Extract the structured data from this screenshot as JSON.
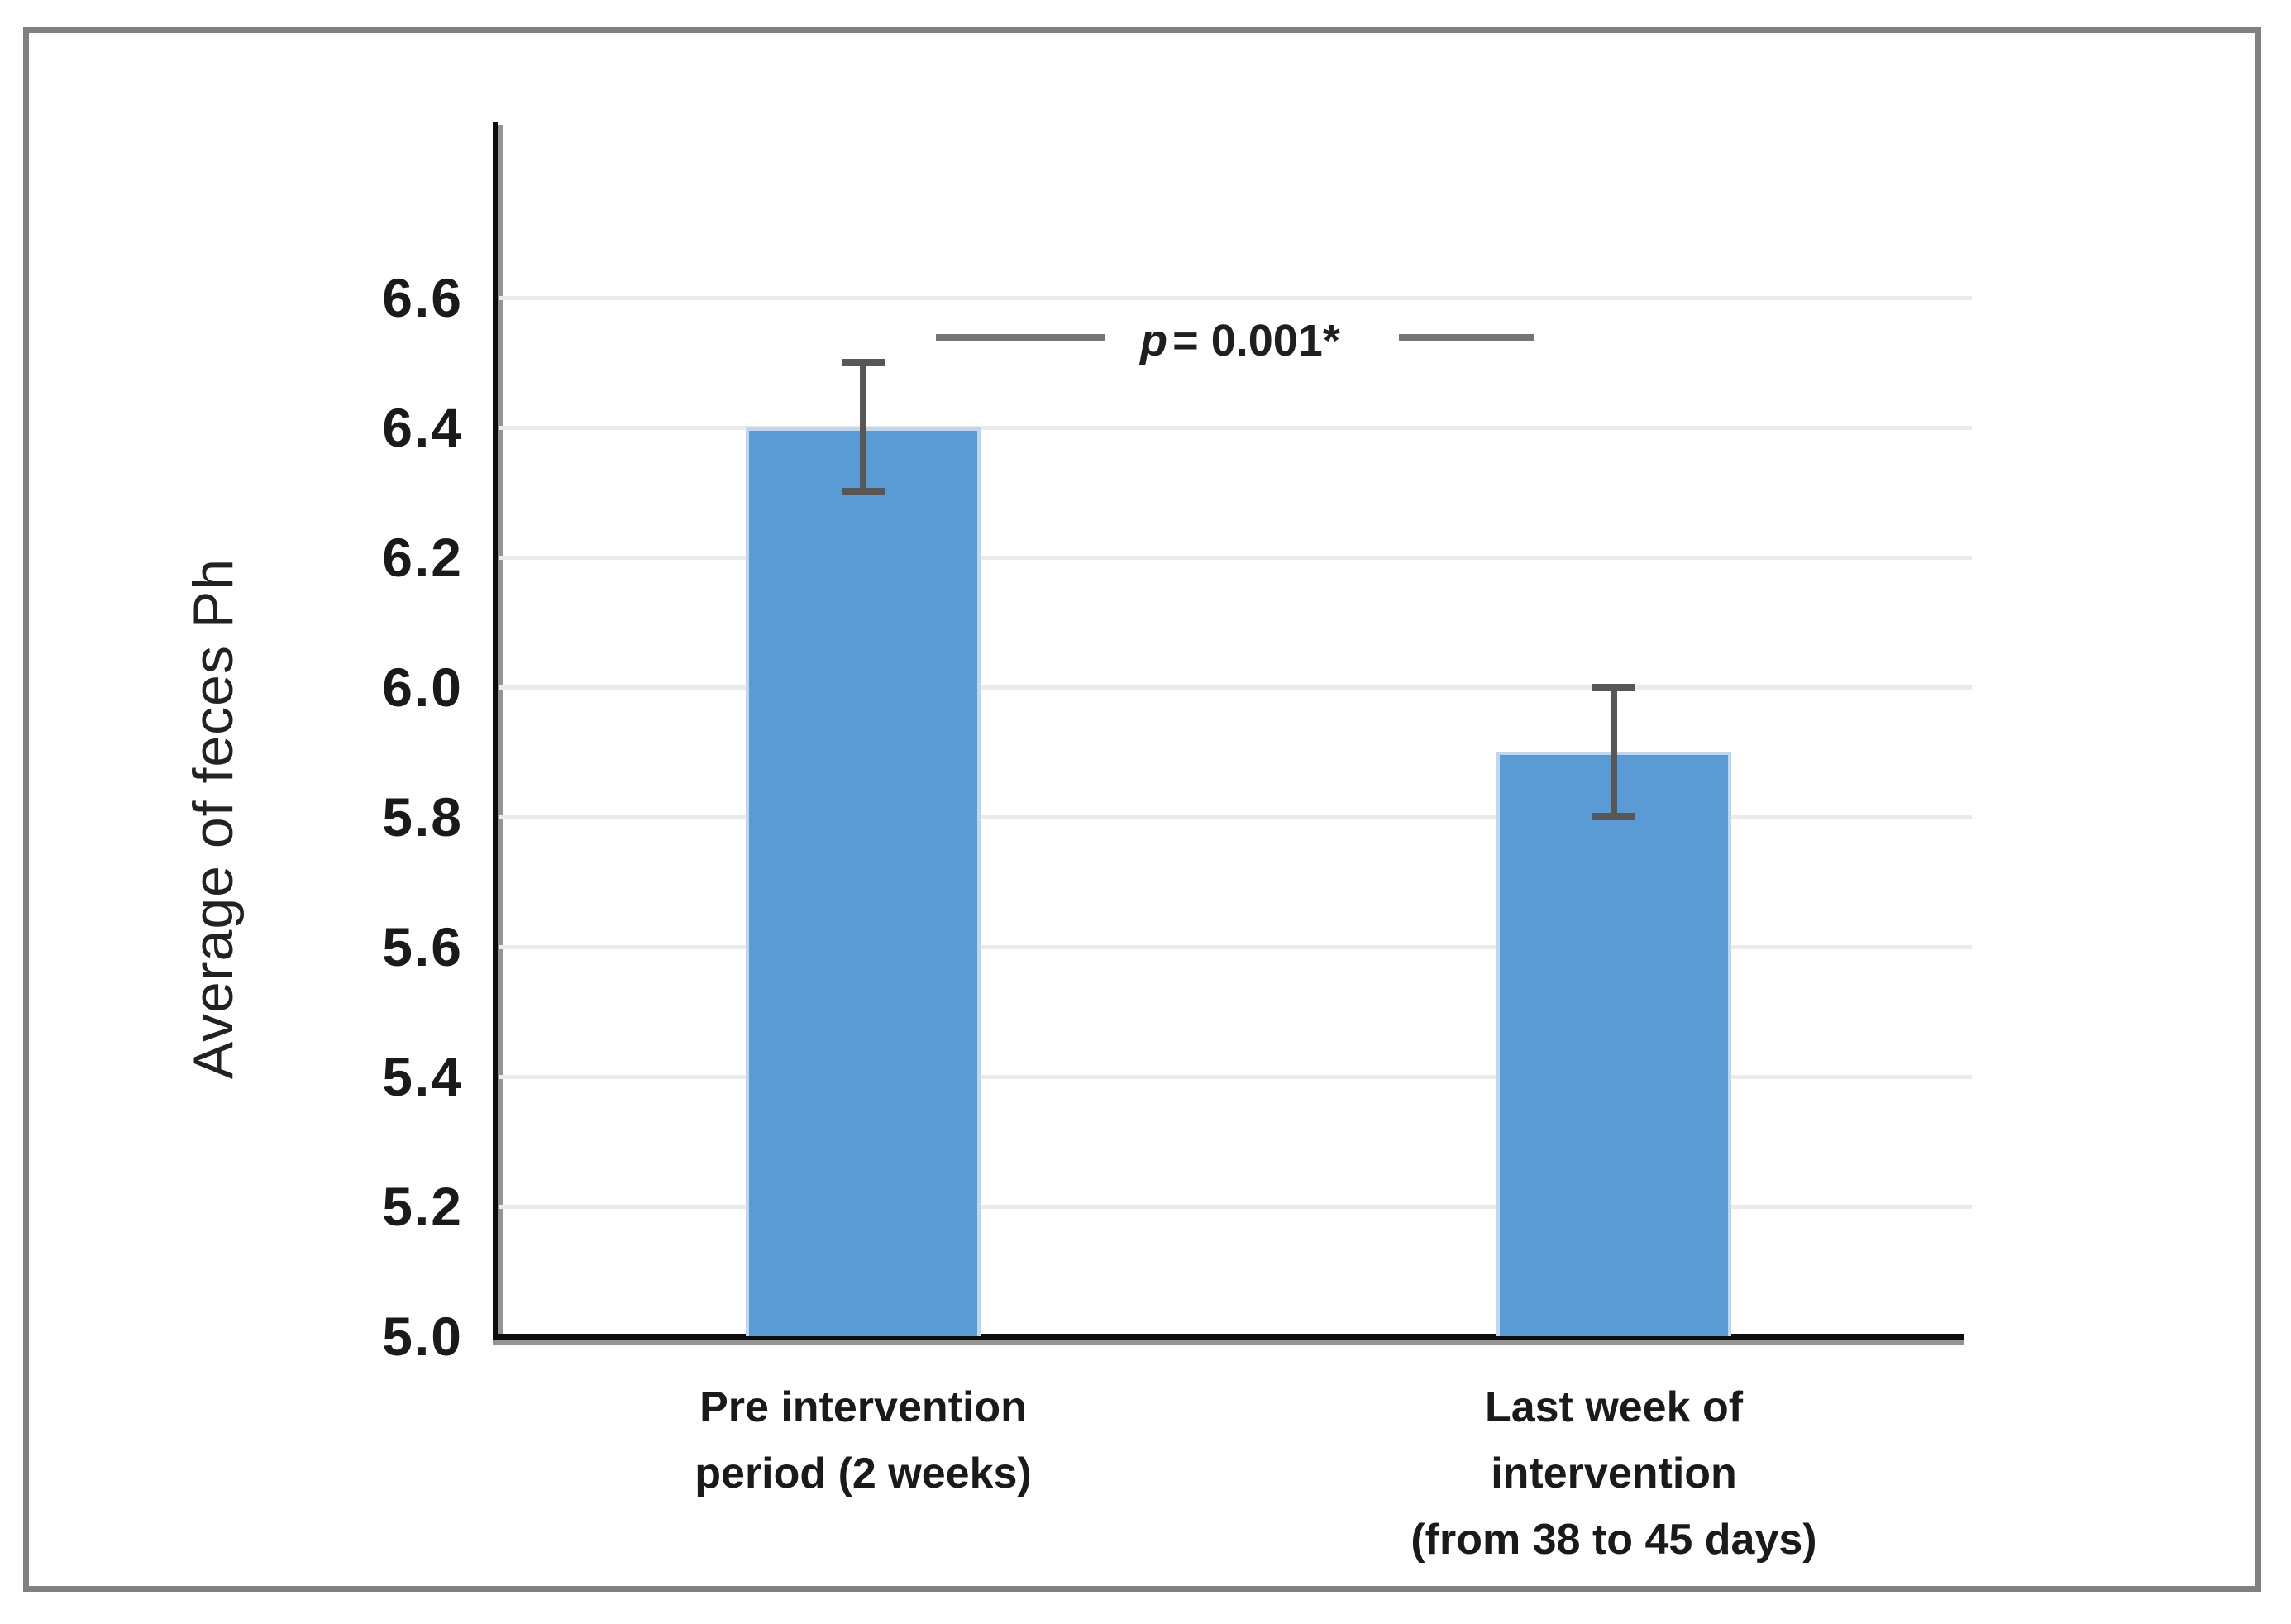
{
  "chart_data": {
    "type": "bar",
    "title": "",
    "ylabel": "Average of feces Ph",
    "xlabel": "",
    "categories": [
      {
        "lines": [
          "Pre intervention",
          "period (2 weeks)"
        ]
      },
      {
        "lines": [
          "Last week  of",
          "intervention",
          "(from 38 to 45 days)"
        ]
      }
    ],
    "values": [
      6.4,
      5.9
    ],
    "error_bars": [
      0.1,
      0.1
    ],
    "ylim": [
      5.0,
      6.87
    ],
    "ytick_labels": [
      "6.6",
      "6.4",
      "6.2",
      "6.0",
      "5.8",
      "5.6",
      "5.4",
      "5.2",
      "5.0"
    ],
    "grid": true,
    "legend": "none",
    "annotation": {
      "symbol": "p",
      "rest": "= 0.001*"
    },
    "colors": {
      "bar_fill": "#5B9BD5",
      "bar_edge": "#BDD7EE",
      "error_bar": "#575757",
      "gridline": "#EBEBEB",
      "axis": "#0d0d0d",
      "axis_shadow": "#949494",
      "frame": "#808080",
      "annotation_line": "#757575",
      "text": "#1A1A1A"
    }
  }
}
